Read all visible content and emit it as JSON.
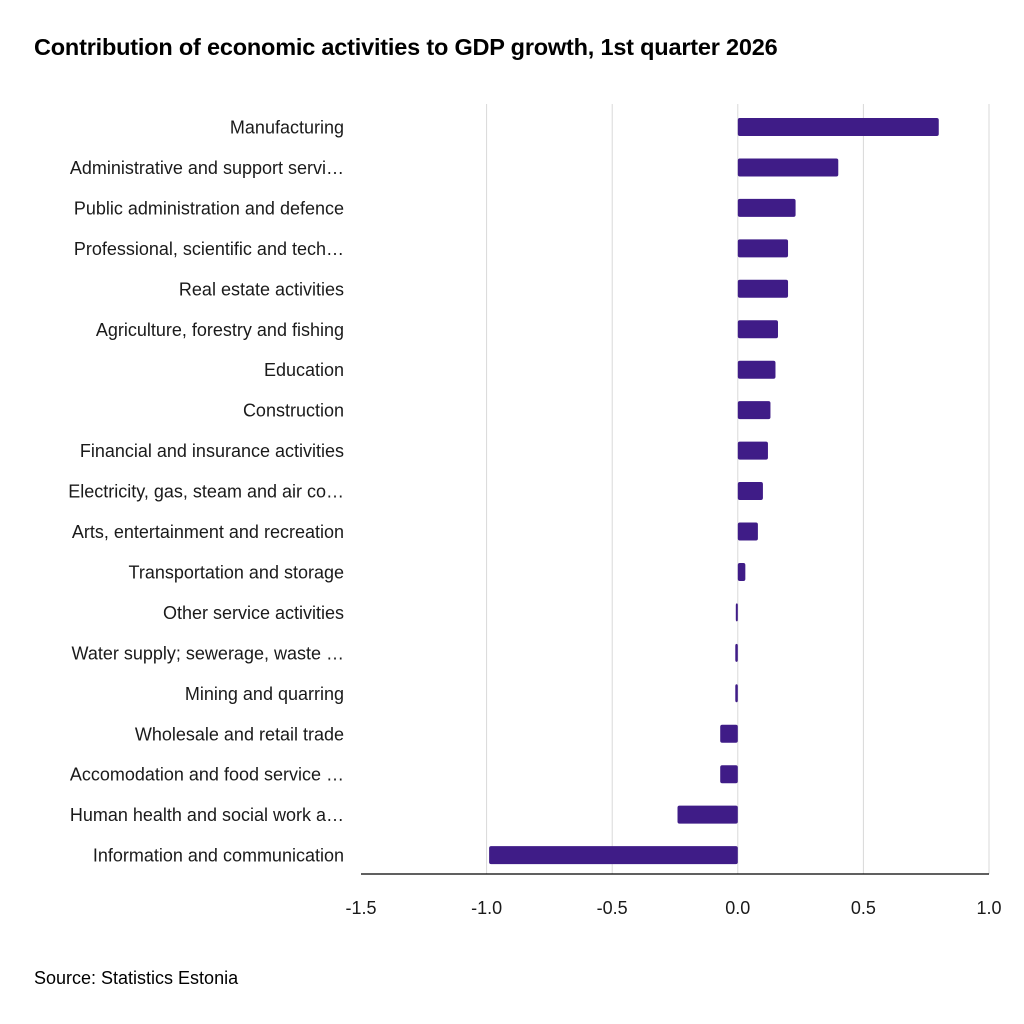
{
  "title": "Contribution of economic activities to GDP growth, 1st quarter 2026",
  "source": "Source: Statistics Estonia",
  "colors": {
    "bar": "#3f1c87",
    "grid": "#d9d9d9",
    "axis": "#000000"
  },
  "chart_data": {
    "type": "bar",
    "orientation": "horizontal",
    "title": "Contribution of economic activities to GDP growth, 1st quarter 2026",
    "xlabel": "",
    "ylabel": "",
    "xlim": [
      -1.5,
      1.0
    ],
    "x_ticks": [
      -1.5,
      -1.0,
      -0.5,
      0.0,
      0.5,
      1.0
    ],
    "x_tick_labels": [
      "-1.5",
      "-1.0",
      "-0.5",
      "0.0",
      "0.5",
      "1.0"
    ],
    "grid": true,
    "legend": "none",
    "categories": [
      "Manufacturing",
      "Administrative and support servi…",
      "Public administration and defence",
      "Professional, scientific and tech…",
      "Real estate activities",
      "Agriculture, forestry and fishing",
      "Education",
      "Construction",
      "Financial and insurance activities",
      "Electricity, gas, steam and air co…",
      "Arts, entertainment and recreation",
      "Transportation and storage",
      "Other service activities",
      "Water supply; sewerage, waste …",
      "Mining and quarring",
      "Wholesale and retail trade",
      "Accomodation and food service …",
      "Human health and social work a…",
      "Information and communication"
    ],
    "values": [
      0.8,
      0.4,
      0.23,
      0.2,
      0.2,
      0.16,
      0.15,
      0.13,
      0.12,
      0.1,
      0.08,
      0.03,
      -0.005,
      -0.01,
      -0.01,
      -0.07,
      -0.07,
      -0.24,
      -0.99
    ]
  }
}
